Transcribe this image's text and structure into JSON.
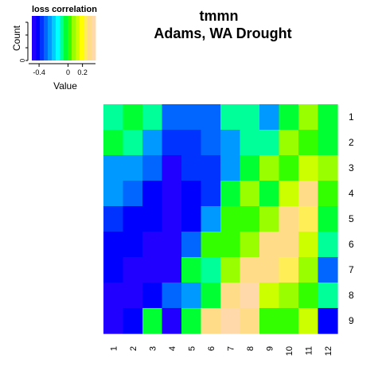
{
  "chart_data": {
    "type": "heatmap",
    "title": "tmmn",
    "subtitle": "Adams, WA Drought",
    "xlabel": "",
    "ylabel": "",
    "x_categories": [
      "1",
      "2",
      "3",
      "4",
      "5",
      "6",
      "7",
      "8",
      "9",
      "10",
      "11",
      "12"
    ],
    "y_categories": [
      "1",
      "2",
      "3",
      "4",
      "5",
      "6",
      "7",
      "8",
      "9"
    ],
    "values": [
      [
        -0.05,
        -0.02,
        -0.06,
        -0.28,
        -0.28,
        -0.28,
        -0.05,
        -0.05,
        -0.2,
        0.02,
        0.12,
        -0.02
      ],
      [
        -0.01,
        -0.05,
        -0.2,
        -0.32,
        -0.32,
        -0.28,
        -0.2,
        -0.05,
        -0.05,
        0.1,
        0.05,
        0.02
      ],
      [
        -0.2,
        -0.2,
        -0.28,
        -0.45,
        -0.32,
        -0.32,
        -0.2,
        0.02,
        0.12,
        0.05,
        0.15,
        0.12
      ],
      [
        -0.2,
        -0.28,
        -0.38,
        -0.45,
        -0.38,
        -0.32,
        -0.02,
        0.12,
        0.02,
        0.15,
        0.3,
        0.08
      ],
      [
        -0.32,
        -0.38,
        -0.38,
        -0.42,
        -0.38,
        -0.2,
        0.08,
        0.08,
        0.12,
        0.3,
        0.28,
        0.02
      ],
      [
        -0.38,
        -0.38,
        -0.42,
        -0.42,
        -0.28,
        0.04,
        0.04,
        0.12,
        0.3,
        0.3,
        0.15,
        -0.05
      ],
      [
        -0.38,
        -0.45,
        -0.42,
        -0.45,
        0.02,
        -0.05,
        0.12,
        0.3,
        0.3,
        0.28,
        0.12,
        -0.28
      ],
      [
        -0.42,
        -0.42,
        -0.38,
        -0.28,
        -0.2,
        0.02,
        0.3,
        0.38,
        0.15,
        0.12,
        0.08,
        -0.05
      ],
      [
        -0.42,
        -0.38,
        -0.01,
        -0.45,
        -0.01,
        0.3,
        0.38,
        0.3,
        0.04,
        0.08,
        0.15,
        -0.38
      ]
    ],
    "zlim": [
      -0.45,
      0.4
    ],
    "legend": {
      "title": "loss correlation",
      "ylabel": "Count",
      "ytick": "0",
      "xlabel": "Value",
      "ticks": [
        "-0.4",
        "0",
        "0.2"
      ],
      "tick_values": [
        -0.4,
        0,
        0.2
      ],
      "placement": "top-left"
    },
    "colormap": [
      "#2200ff",
      "#0000ff",
      "#0033ff",
      "#0066ff",
      "#0099ff",
      "#00ccff",
      "#00ffff",
      "#00ff99",
      "#00ff33",
      "#33ff00",
      "#99ff00",
      "#ccff00",
      "#ffff00",
      "#ffee55",
      "#ffdd88",
      "#ffd9aa"
    ],
    "grid": false
  }
}
